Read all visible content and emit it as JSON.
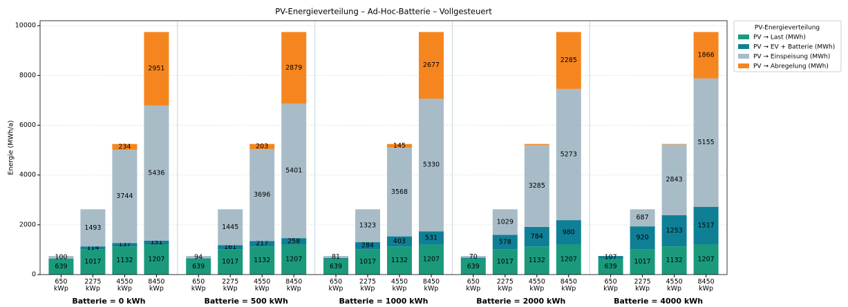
{
  "chart_data": {
    "type": "stacked_bar",
    "title": "PV-Energieverteilung  – Ad-Hoc-Batterie – Vollgesteuert",
    "ylabel": "Energie (MWh/a)",
    "legend_title": "PV-Energieverteilung",
    "legend": "upper right outside",
    "grid": true,
    "groups": [
      "Batterie = 0 kWh",
      "Batterie = 500 kWh",
      "Batterie = 1000 kWh",
      "Batterie = 2000 kWh",
      "Batterie = 4000 kWh"
    ],
    "categories": [
      "650 kWp",
      "2275 kWp",
      "4550 kWp",
      "8450 kWp",
      "650 kWp",
      "2275 kWp",
      "4550 kWp",
      "8450 kWp",
      "650 kWp",
      "2275 kWp",
      "4550 kWp",
      "8450 kWp",
      "650 kWp",
      "2275 kWp",
      "4550 kWp",
      "8450 kWp",
      "650 kWp",
      "2275 kWp",
      "4550 kWp",
      "8450 kWp"
    ],
    "series": [
      {
        "name": "PV → Last (MWh)",
        "color": "#1b9a7b",
        "values": [
          639,
          1017,
          1132,
          1207,
          639,
          1017,
          1132,
          1207,
          639,
          1017,
          1132,
          1207,
          639,
          1017,
          1132,
          1207,
          639,
          1017,
          1132,
          1207
        ]
      },
      {
        "name": "PV → EV + Batterie (MWh)",
        "color": "#0f7f95",
        "values": [
          7,
          114,
          137,
          151,
          13,
          161,
          217,
          258,
          26,
          284,
          403,
          531,
          37,
          578,
          784,
          980,
          107,
          920,
          1253,
          1517
        ]
      },
      {
        "name": "PV → Einspeisung (MWh)",
        "color": "#a8bcc8",
        "values": [
          100,
          1493,
          3744,
          5436,
          94,
          1445,
          3696,
          5401,
          81,
          1323,
          3568,
          5330,
          70,
          1029,
          3285,
          5273,
          0,
          687,
          2843,
          5155
        ]
      },
      {
        "name": "PV → Abregelung (MWh)",
        "color": "#f5861f",
        "values": [
          0,
          0,
          234,
          2951,
          0,
          0,
          203,
          2879,
          0,
          0,
          145,
          2677,
          0,
          0,
          47,
          2285,
          0,
          0,
          20,
          1866
        ]
      }
    ],
    "ylim": [
      0,
      10200
    ],
    "yticks": [
      0,
      2000,
      4000,
      6000,
      8000,
      10000
    ]
  }
}
